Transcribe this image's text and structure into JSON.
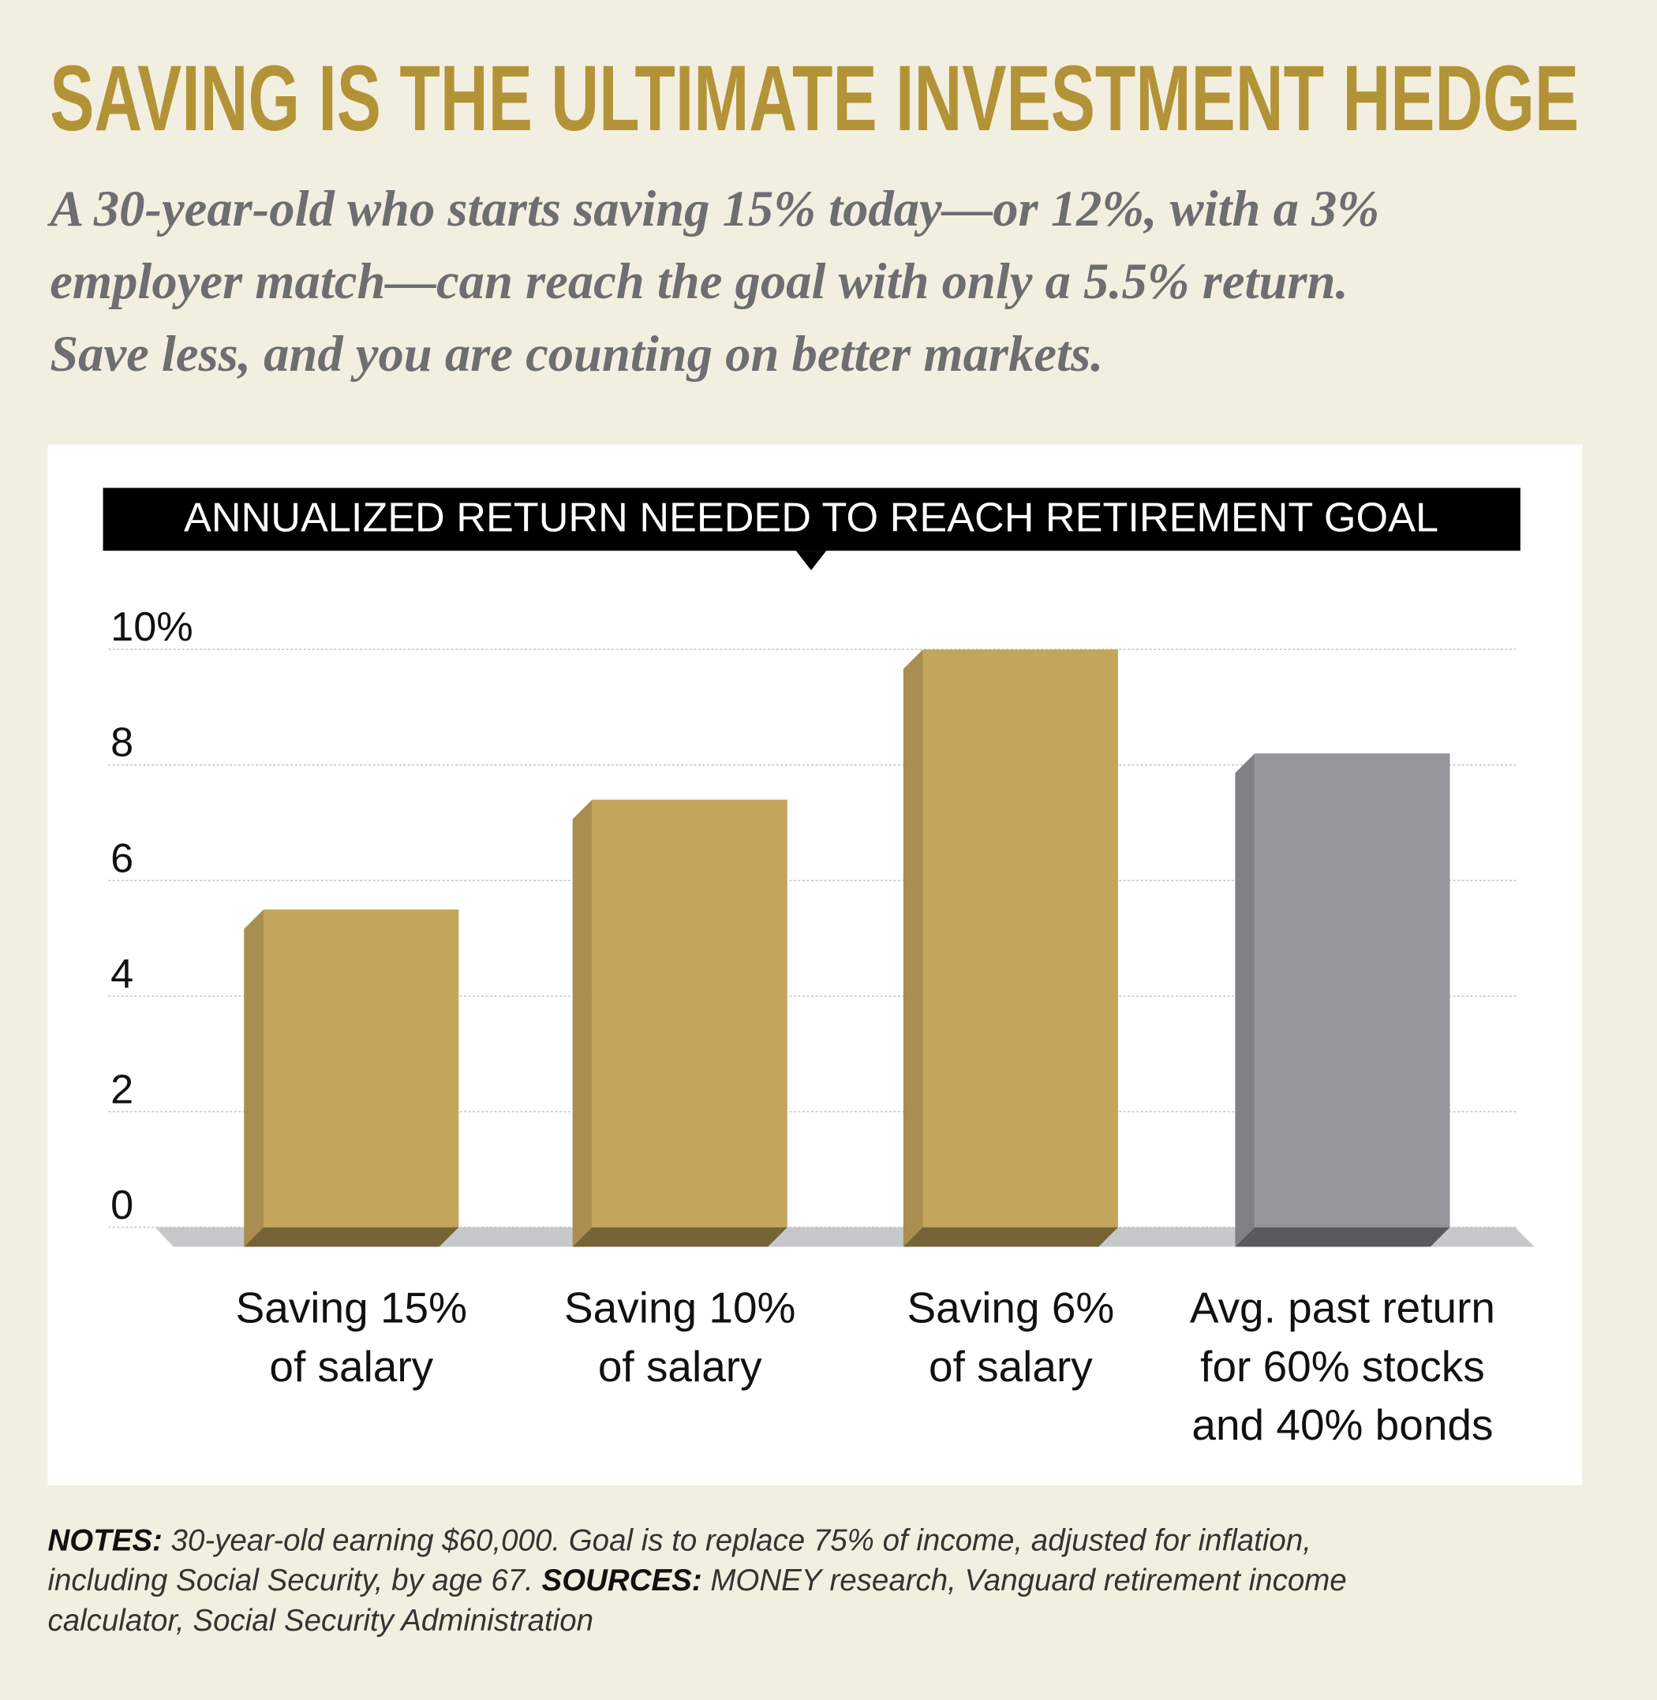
{
  "header": {
    "title": "SAVING IS THE ULTIMATE INVESTMENT HEDGE",
    "subtitle": "A 30-year-old who starts saving 15% today—or 12%, with a 3%\nemployer match—can reach the goal with only a 5.5% return.\nSave less, and you are counting on better markets."
  },
  "chart_data": {
    "type": "bar",
    "title": "ANNUALIZED RETURN NEEDED TO REACH RETIREMENT GOAL",
    "categories": [
      "Saving 15%\nof salary",
      "Saving 10%\nof salary",
      "Saving 6%\nof salary",
      "Avg. past return\nfor 60% stocks\nand 40% bonds"
    ],
    "values": [
      5.5,
      7.4,
      10.0,
      8.2
    ],
    "colors": [
      "#c4a55c",
      "#c4a55c",
      "#c4a55c",
      "#959699"
    ],
    "ylim": [
      0,
      10
    ],
    "yticks": [
      0,
      2,
      4,
      6,
      8,
      {
        "value": 10,
        "label": "10%"
      }
    ],
    "grid": true
  },
  "footer": {
    "notes_label": "NOTES:",
    "notes_text": " 30-year-old earning $60,000. Goal is to replace 75% of income, adjusted for inflation,\nincluding Social Security, by age 67. ",
    "sources_label": "SOURCES:",
    "sources_text": " MONEY research, Vanguard retirement income\ncalculator, Social Security Administration"
  }
}
